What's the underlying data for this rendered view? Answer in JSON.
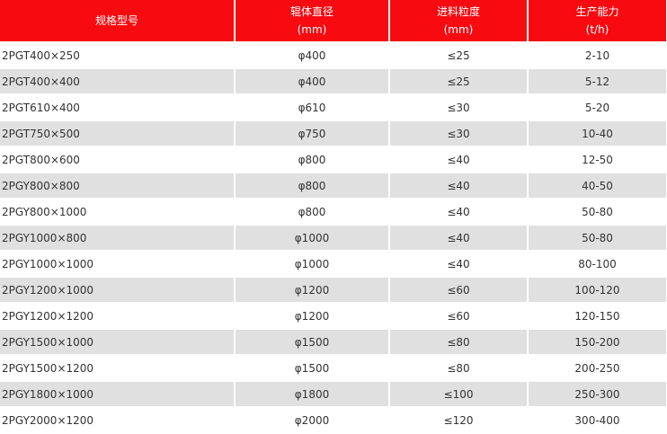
{
  "headers": [
    {
      "title": "规格型号",
      "unit": ""
    },
    {
      "title": "辊体直径",
      "unit": "(mm)"
    },
    {
      "title": "进料粒度",
      "unit": "(mm)"
    },
    {
      "title": "生产能力",
      "unit": "(t/h)"
    }
  ],
  "rows": [
    [
      "2PGT400×250",
      "φ400",
      "≤25",
      "2-10"
    ],
    [
      "2PGT400×400",
      "φ400",
      "≤25",
      "5-12"
    ],
    [
      "2PGT610×400",
      "φ610",
      "≤30",
      "5-20"
    ],
    [
      "2PGT750×500",
      "φ750",
      "≤30",
      "10-40"
    ],
    [
      "2PGT800×600",
      "φ800",
      "≤40",
      "12-50"
    ],
    [
      "2PGY800×800",
      "φ800",
      "≤40",
      "40-50"
    ],
    [
      "2PGY800×1000",
      "φ800",
      "≤40",
      "50-80"
    ],
    [
      "2PGY1000×800",
      "φ1000",
      "≤40",
      "50-80"
    ],
    [
      "2PGY1000×1000",
      "φ1000",
      "≤40",
      "80-100"
    ],
    [
      "2PGY1200×1000",
      "φ1200",
      "≤60",
      "100-120"
    ],
    [
      "2PGY1200×1200",
      "φ1200",
      "≤60",
      "120-150"
    ],
    [
      "2PGY1500×1000",
      "φ1500",
      "≤80",
      "150-200"
    ],
    [
      "2PGY1500×1200",
      "φ1500",
      "≤80",
      "200-250"
    ],
    [
      "2PGY1800×1000",
      "φ1800",
      "≤100",
      "250-300"
    ],
    [
      "2PGY2000×1200",
      "φ2000",
      "≤120",
      "300-400"
    ]
  ],
  "colors": {
    "header": "#f70a10",
    "alt_row": "#e0e0e0"
  }
}
